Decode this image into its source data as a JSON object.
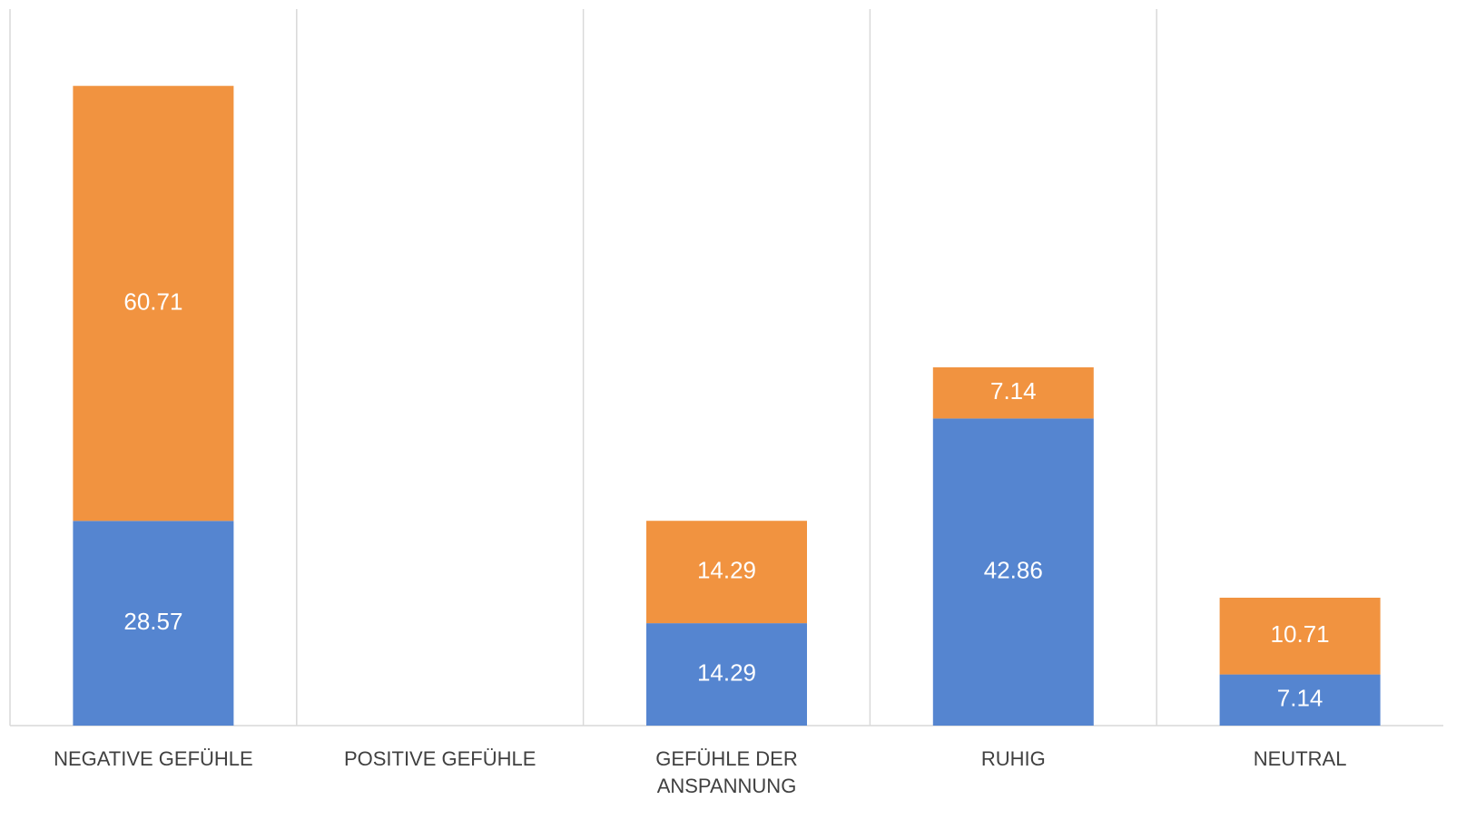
{
  "chart_data": {
    "type": "stacked_bar",
    "categories": [
      "NEGATIVE GEFÜHLE",
      "POSITIVE GEFÜHLE",
      "GEFÜHLE DER ANSPANNUNG",
      "RUHIG",
      "NEUTRAL"
    ],
    "series": [
      {
        "color": "#5585d0",
        "values": [
          28.57,
          0,
          14.29,
          42.86,
          7.14
        ]
      },
      {
        "color": "#f19340",
        "values": [
          60.71,
          0,
          14.29,
          7.14,
          10.71
        ]
      }
    ],
    "ylim": [
      0,
      100
    ]
  }
}
